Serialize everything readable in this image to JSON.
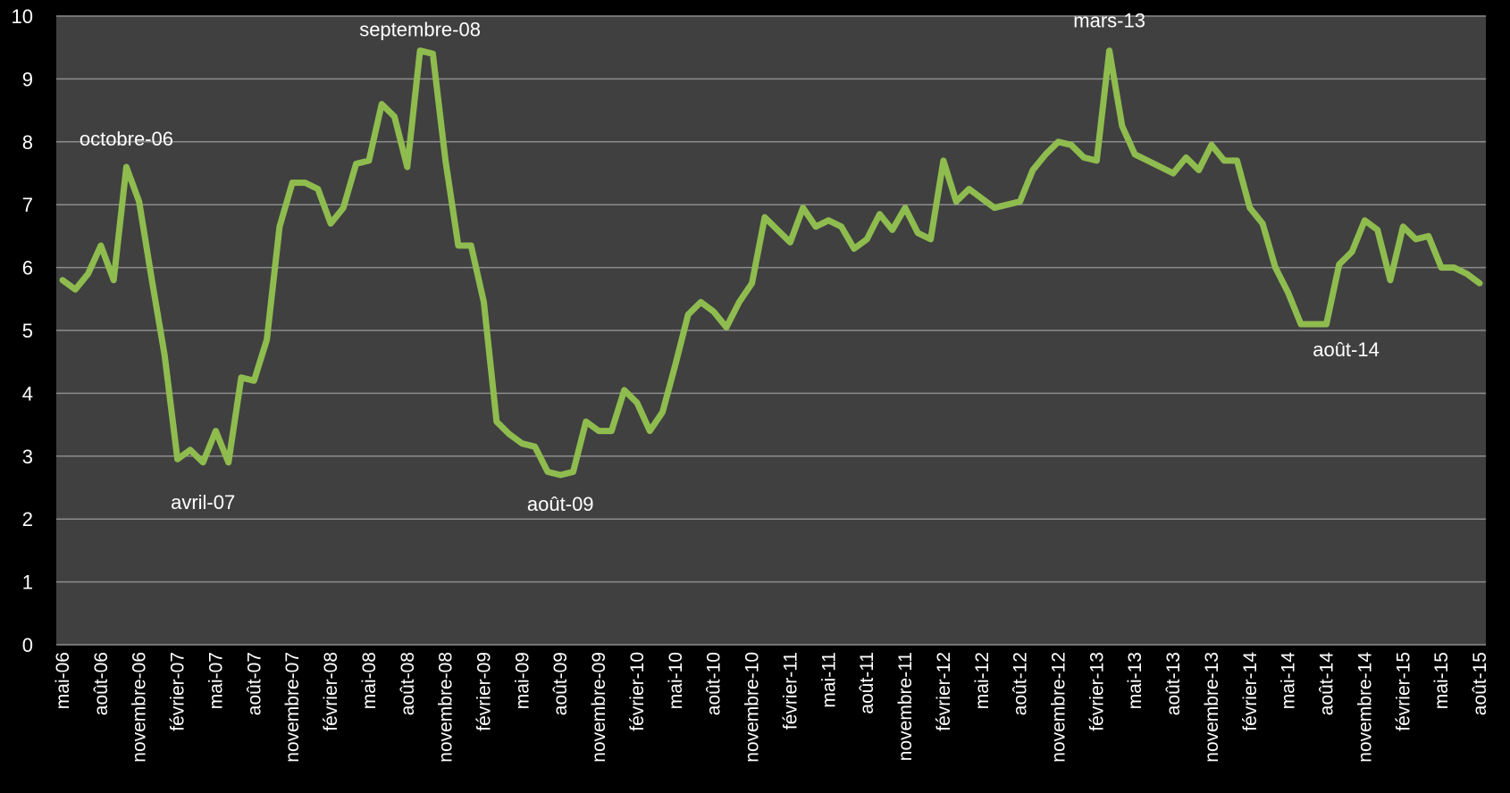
{
  "chart_data": {
    "type": "line",
    "title": "",
    "xlabel": "",
    "ylabel": "",
    "ylim": [
      0,
      10
    ],
    "yticks": [
      0,
      1,
      2,
      3,
      4,
      5,
      6,
      7,
      8,
      9,
      10
    ],
    "grid": true,
    "legend": "none",
    "colors": {
      "background": "#000000",
      "plot_area": "#404040",
      "gridline": "#8c8c8c",
      "line": "#8fbc4e",
      "text": "#ffffff"
    },
    "x_tick_labels": [
      "mai-06",
      "août-06",
      "novembre-06",
      "février-07",
      "mai-07",
      "août-07",
      "novembre-07",
      "février-08",
      "mai-08",
      "août-08",
      "novembre-08",
      "février-09",
      "mai-09",
      "août-09",
      "novembre-09",
      "février-10",
      "mai-10",
      "août-10",
      "novembre-10",
      "février-11",
      "mai-11",
      "août-11",
      "novembre-11",
      "février-12",
      "mai-12",
      "août-12",
      "novembre-12",
      "février-13",
      "mai-13",
      "août-13",
      "novembre-13",
      "février-14",
      "mai-14",
      "août-14",
      "novembre-14",
      "février-15",
      "mai-15",
      "août-15"
    ],
    "series": [
      {
        "name": "",
        "values": [
          5.8,
          5.65,
          5.9,
          6.35,
          5.8,
          7.6,
          7.05,
          5.8,
          4.6,
          2.95,
          3.1,
          2.9,
          3.4,
          2.9,
          4.25,
          4.2,
          4.85,
          6.65,
          7.35,
          7.35,
          7.25,
          6.7,
          6.95,
          7.65,
          7.7,
          8.6,
          8.4,
          7.6,
          9.45,
          9.4,
          7.7,
          6.35,
          6.35,
          5.45,
          3.55,
          3.35,
          3.2,
          3.15,
          2.75,
          2.7,
          2.75,
          3.55,
          3.4,
          3.4,
          4.05,
          3.85,
          3.4,
          3.7,
          4.45,
          5.25,
          5.45,
          5.3,
          5.05,
          5.45,
          5.75,
          6.8,
          6.6,
          6.4,
          6.95,
          6.65,
          6.75,
          6.65,
          6.3,
          6.45,
          6.85,
          6.6,
          6.95,
          6.55,
          6.45,
          7.7,
          7.05,
          7.25,
          7.1,
          6.95,
          7.0,
          7.05,
          7.55,
          7.8,
          8.0,
          7.95,
          7.75,
          7.7,
          9.45,
          8.25,
          7.8,
          7.7,
          7.6,
          7.5,
          7.75,
          7.55,
          7.95,
          7.7,
          7.7,
          6.95,
          6.7,
          6.0,
          5.6,
          5.1,
          5.1,
          5.1,
          6.05,
          6.25,
          6.75,
          6.6,
          5.8,
          6.65,
          6.45,
          6.5,
          6.0,
          6.0,
          5.9,
          5.75
        ]
      }
    ],
    "annotations": [
      {
        "text": "octobre-06",
        "index": 5
      },
      {
        "text": "avril-07",
        "index": 11
      },
      {
        "text": "septembre-08",
        "index": 28
      },
      {
        "text": "août-09",
        "index": 39
      },
      {
        "text": "mars-13",
        "index": 82
      },
      {
        "text": "août-14",
        "index": 99
      }
    ]
  }
}
